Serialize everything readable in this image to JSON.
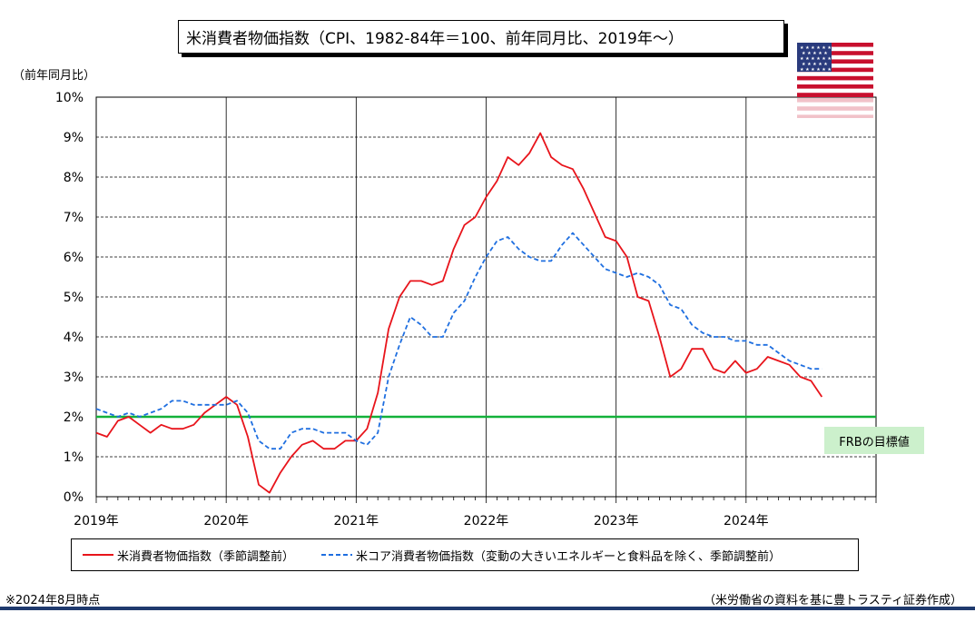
{
  "title": "米消費者物価指数（CPI、1982-84年＝100、前年同月比、2019年～）",
  "y_unit_label": "（前年同月比）",
  "target_label": "FRBの目標値",
  "note": "※2024年8月時点",
  "source": "（米労働省の資料を基に豊トラスティ証券作成）",
  "flag_icon": "us-flag-icon",
  "colors": {
    "cpi": "#e8141b",
    "core": "#1f6fe0",
    "target": "#13b13a",
    "bottom_rule": "#1f3a6e"
  },
  "chart_data": {
    "type": "line",
    "title": "米消費者物価指数（CPI、1982-84年＝100、前年同月比、2019年～）",
    "ylabel": "（前年同月比）",
    "xlabel": "",
    "ylim": [
      0,
      10
    ],
    "yticks": [
      0,
      1,
      2,
      3,
      4,
      5,
      6,
      7,
      8,
      9,
      10
    ],
    "ytick_labels": [
      "0%",
      "1%",
      "2%",
      "3%",
      "4%",
      "5%",
      "6%",
      "7%",
      "8%",
      "9%",
      "10%"
    ],
    "xlim": [
      "2019-01",
      "2024-12"
    ],
    "xtick_labels": [
      "2019年",
      "2020年",
      "2021年",
      "2022年",
      "2023年",
      "2024年"
    ],
    "grid": "horizontal dashed, vertical solid at years",
    "legend": "bottom",
    "target_line": 2.0,
    "series": [
      {
        "name": "米消費者物価指数（季節調整前）",
        "style": "solid",
        "start": "2019-01",
        "values": [
          1.6,
          1.5,
          1.9,
          2.0,
          1.8,
          1.6,
          1.8,
          1.7,
          1.7,
          1.8,
          2.1,
          2.3,
          2.5,
          2.3,
          1.5,
          0.3,
          0.1,
          0.6,
          1.0,
          1.3,
          1.4,
          1.2,
          1.2,
          1.4,
          1.4,
          1.7,
          2.6,
          4.2,
          5.0,
          5.4,
          5.4,
          5.3,
          5.4,
          6.2,
          6.8,
          7.0,
          7.5,
          7.9,
          8.5,
          8.3,
          8.6,
          9.1,
          8.5,
          8.3,
          8.2,
          7.7,
          7.1,
          6.5,
          6.4,
          6.0,
          5.0,
          4.9,
          4.0,
          3.0,
          3.2,
          3.7,
          3.7,
          3.2,
          3.1,
          3.4,
          3.1,
          3.2,
          3.5,
          3.4,
          3.3,
          3.0,
          2.9,
          2.5
        ]
      },
      {
        "name": "米コア消費者物価指数（変動の大きいエネルギーと食料品を除く、季節調整前）",
        "style": "dashed",
        "start": "2019-01",
        "values": [
          2.2,
          2.1,
          2.0,
          2.1,
          2.0,
          2.1,
          2.2,
          2.4,
          2.4,
          2.3,
          2.3,
          2.3,
          2.3,
          2.4,
          2.1,
          1.4,
          1.2,
          1.2,
          1.6,
          1.7,
          1.7,
          1.6,
          1.6,
          1.6,
          1.4,
          1.3,
          1.6,
          3.0,
          3.8,
          4.5,
          4.3,
          4.0,
          4.0,
          4.6,
          4.9,
          5.5,
          6.0,
          6.4,
          6.5,
          6.2,
          6.0,
          5.9,
          5.9,
          6.3,
          6.6,
          6.3,
          6.0,
          5.7,
          5.6,
          5.5,
          5.6,
          5.5,
          5.3,
          4.8,
          4.7,
          4.3,
          4.1,
          4.0,
          4.0,
          3.9,
          3.9,
          3.8,
          3.8,
          3.6,
          3.4,
          3.3,
          3.2,
          3.2
        ]
      }
    ]
  }
}
